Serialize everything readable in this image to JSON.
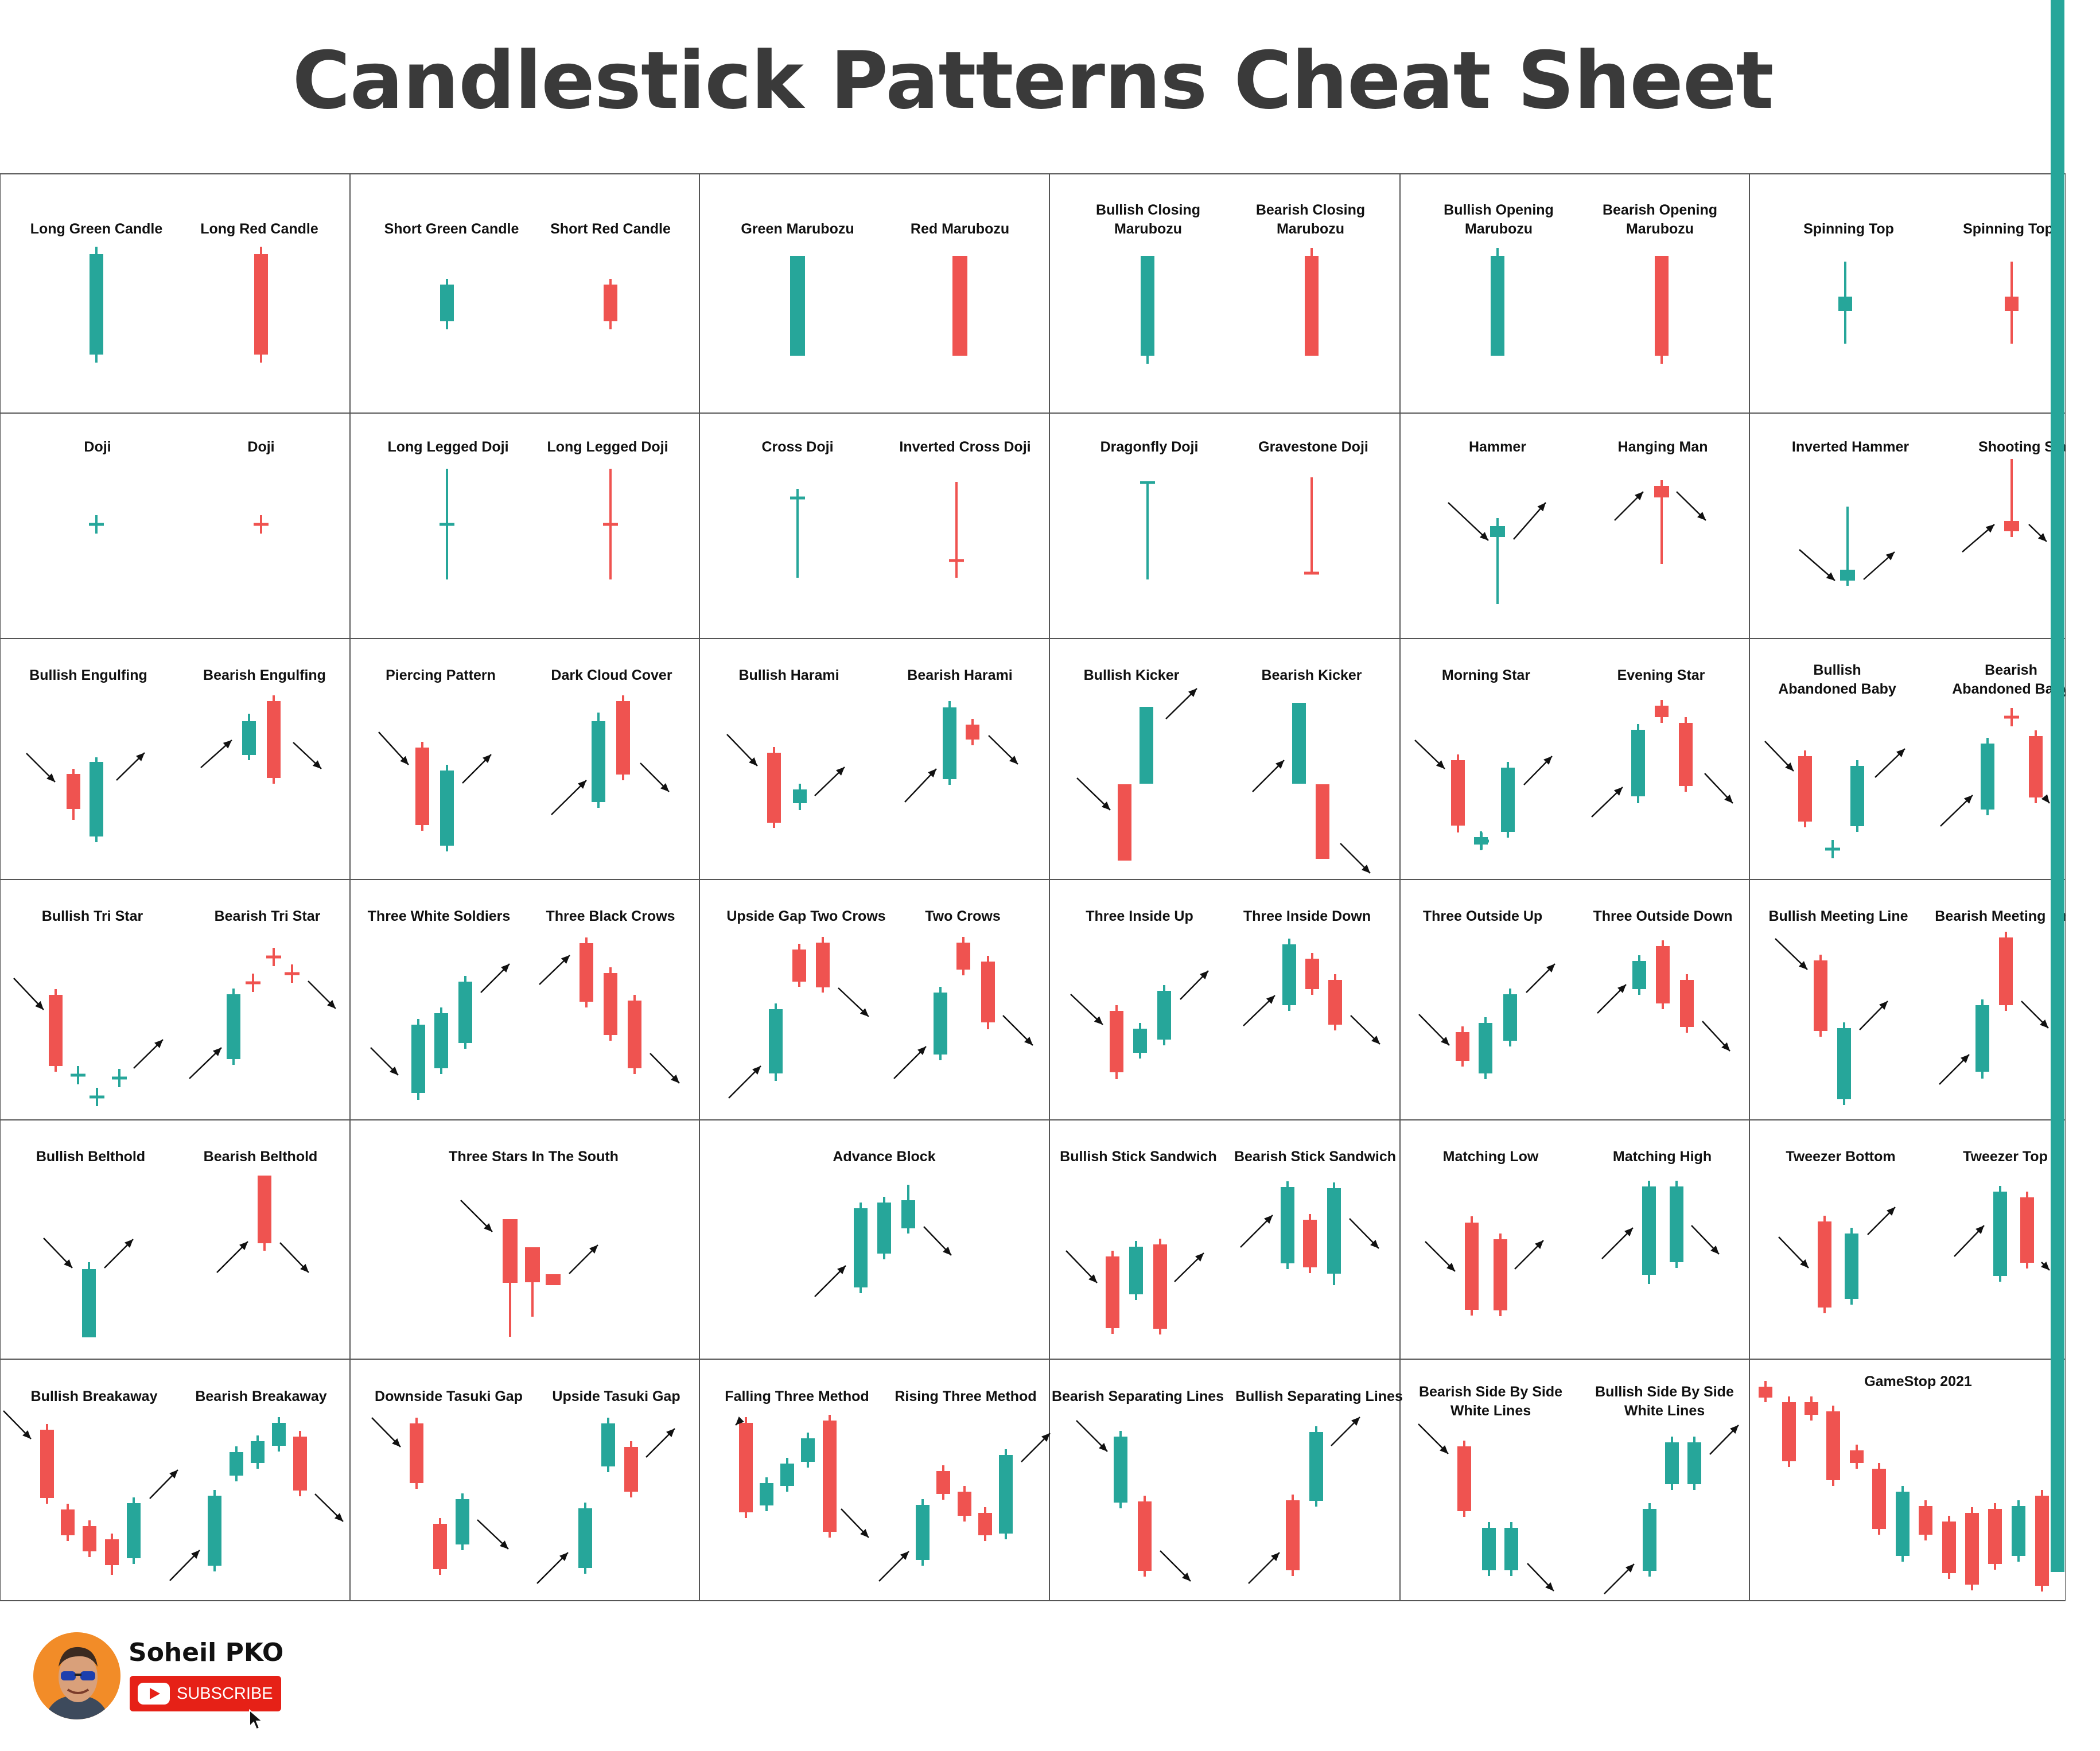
{
  "title": "Candlestick Patterns Cheat Sheet",
  "colors": {
    "bull": "#26a69a",
    "bear": "#ef5350",
    "grid": "#555555",
    "arrow": "#111111"
  },
  "patterns": [
    "Long Green Candle",
    "Long Red Candle",
    "Short Green Candle",
    "Short Red Candle",
    "Green Marubozu",
    "Red Marubozu",
    "Bullish Closing Marubozu",
    "Bearish Closing Marubozu",
    "Bullish Opening Marubozu",
    "Bearish Opening Marubozu",
    "Spinning Top",
    "Spinning Top",
    "Doji",
    "Doji",
    "Long Legged Doji",
    "Long Legged Doji",
    "Cross Doji",
    "Inverted Cross Doji",
    "Dragonfly Doji",
    "Gravestone Doji",
    "Hammer",
    "Hanging Man",
    "Inverted Hammer",
    "Shooting Star",
    "Bullish Engulfing",
    "Bearish Engulfing",
    "Piercing Pattern",
    "Dark Cloud Cover",
    "Bullish Harami",
    "Bearish Harami",
    "Bullish Kicker",
    "Bearish Kicker",
    "Morning Star",
    "Evening Star",
    "Bullish Abandoned Baby",
    "Bearish Abandoned Baby",
    "Bullish Tri Star",
    "Bearish Tri Star",
    "Three White Soldiers",
    "Three Black Crows",
    "Upside Gap Two Crows",
    "Two Crows",
    "Three Inside Up",
    "Three Inside Down",
    "Three Outside Up",
    "Three Outside Down",
    "Bullish Meeting Line",
    "Bearish Meeting Line",
    "Bullish Belthold",
    "Bearish Belthold",
    "Three Stars In The South",
    "Advance Block",
    "Bullish Stick Sandwich",
    "Bearish Stick Sandwich",
    "Matching Low",
    "Matching High",
    "Tweezer Bottom",
    "Tweezer Top",
    "Bullish Breakaway",
    "Bearish Breakaway",
    "Downside Tasuki Gap",
    "Upside Tasuki Gap",
    "Falling Three Method",
    "Rising Three Method",
    "Bearish Separating Lines",
    "Bullish Separating Lines",
    "Bearish Side By Side White Lines",
    "Bullish Side By Side White Lines",
    "GameStop 2021"
  ],
  "author": {
    "name": "Soheil PKO",
    "subscribe_label": "SUBSCRIBE"
  }
}
